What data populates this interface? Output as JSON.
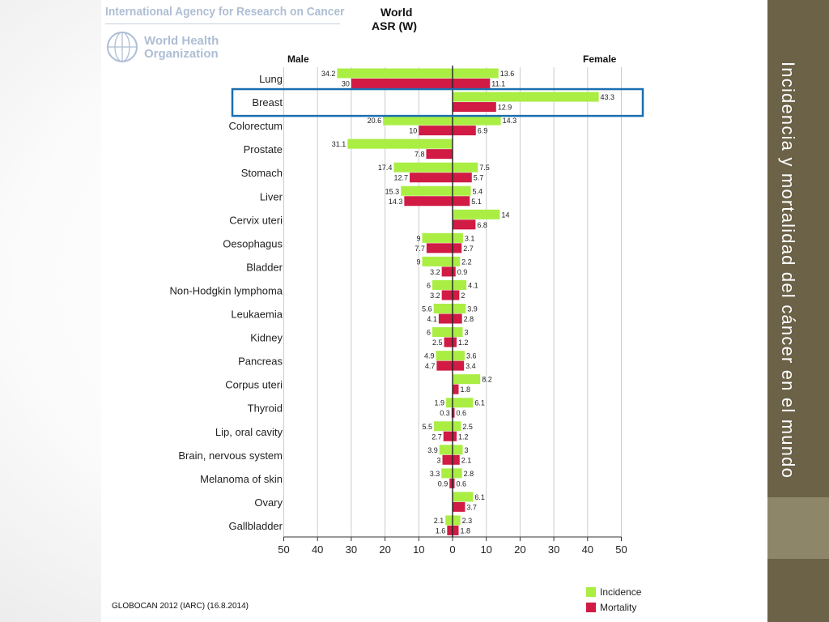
{
  "header": {
    "agency": "International Agency for Research on Cancer",
    "who_line1": "World Health",
    "who_line2": "Organization",
    "title_line1": "World",
    "title_line2": "ASR (W)"
  },
  "slide_title": "Incidencia y mortalidad del cáncer  en el mundo",
  "footer": "GLOBOCAN 2012 (IARC) (16.8.2014)",
  "colors": {
    "incidence": "#aaee44",
    "mortality": "#d11a44",
    "highlight": "#1a6fb0",
    "sidebar": "#6b6248"
  },
  "chart_data": {
    "type": "bar",
    "orientation": "horizontal-population-pyramid",
    "left_label": "Male",
    "right_label": "Female",
    "xlim": [
      -50,
      50
    ],
    "xticks": [
      "50",
      "40",
      "30",
      "20",
      "10",
      "0",
      "10",
      "20",
      "30",
      "40",
      "50"
    ],
    "grid": true,
    "legend": {
      "position": "bottom-right",
      "entries": [
        "Incidence",
        "Mortality"
      ]
    },
    "highlighted_category": "Breast",
    "categories": [
      "Lung",
      "Breast",
      "Colorectum",
      "Prostate",
      "Stomach",
      "Liver",
      "Cervix uteri",
      "Oesophagus",
      "Bladder",
      "Non-Hodgkin lymphoma",
      "Leukaemia",
      "Kidney",
      "Pancreas",
      "Corpus uteri",
      "Thyroid",
      "Lip, oral cavity",
      "Brain, nervous system",
      "Melanoma of skin",
      "Ovary",
      "Gallbladder"
    ],
    "series": [
      {
        "name": "Incidence",
        "sex": "Male",
        "values": [
          34.2,
          null,
          20.6,
          31.1,
          17.4,
          15.3,
          null,
          9,
          9,
          6,
          5.6,
          6,
          4.9,
          null,
          1.9,
          5.5,
          3.9,
          3.3,
          null,
          2.1
        ]
      },
      {
        "name": "Mortality",
        "sex": "Male",
        "values": [
          30,
          null,
          10,
          7.8,
          12.7,
          14.3,
          null,
          7.7,
          3.2,
          3.2,
          4.1,
          2.5,
          4.7,
          null,
          0.3,
          2.7,
          3,
          0.9,
          null,
          1.6
        ]
      },
      {
        "name": "Incidence",
        "sex": "Female",
        "values": [
          13.6,
          43.3,
          14.3,
          null,
          7.5,
          5.4,
          14,
          3.1,
          2.2,
          4.1,
          3.9,
          3,
          3.6,
          8.2,
          6.1,
          2.5,
          3,
          2.8,
          6.1,
          2.3
        ]
      },
      {
        "name": "Mortality",
        "sex": "Female",
        "values": [
          11.1,
          12.9,
          6.9,
          null,
          5.7,
          5.1,
          6.8,
          2.7,
          0.9,
          2,
          2.8,
          1.2,
          3.4,
          1.8,
          0.6,
          1.2,
          2.1,
          0.6,
          3.7,
          1.8
        ]
      }
    ]
  }
}
